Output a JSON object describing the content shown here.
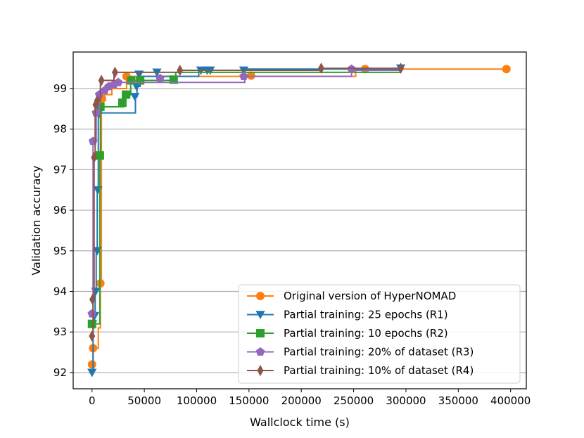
{
  "chart_data": {
    "type": "line",
    "title": "",
    "xlabel": "Wallclock time (s)",
    "ylabel": "Validation accuracy",
    "xlim": [
      -18000,
      415000
    ],
    "ylim": [
      91.6,
      99.9
    ],
    "xticks": [
      0,
      50000,
      100000,
      150000,
      200000,
      250000,
      300000,
      350000,
      400000
    ],
    "xtick_labels": [
      "0",
      "50000",
      "100000",
      "150000",
      "200000",
      "250000",
      "300000",
      "350000",
      "400000"
    ],
    "yticks": [
      92,
      93,
      94,
      95,
      96,
      97,
      98,
      99
    ],
    "ytick_labels": [
      "92",
      "93",
      "94",
      "95",
      "96",
      "97",
      "98",
      "99"
    ],
    "grid": "horizontal",
    "legend_position": "lower-right",
    "series": [
      {
        "name": "Original version of HyperNOMAD",
        "color": "#ff7f0e",
        "marker": "circle",
        "step_points": [
          [
            0,
            92.2
          ],
          [
            1000,
            92.6
          ],
          [
            6000,
            93.1
          ],
          [
            8000,
            94.2
          ],
          [
            9000,
            98.7
          ],
          [
            12000,
            98.85
          ],
          [
            19000,
            99.0
          ],
          [
            33000,
            99.3
          ],
          [
            250000,
            99.3
          ],
          [
            252000,
            99.48
          ],
          [
            396000,
            99.48
          ]
        ],
        "markers": [
          [
            0,
            92.2
          ],
          [
            1000,
            92.6
          ],
          [
            8000,
            94.2
          ],
          [
            9500,
            98.75
          ],
          [
            33000,
            99.3
          ],
          [
            152000,
            99.32
          ],
          [
            261000,
            99.48
          ],
          [
            396000,
            99.48
          ]
        ]
      },
      {
        "name": "Partial training: 25 epochs (R1)",
        "color": "#1f77b4",
        "marker": "triangle-down",
        "step_points": [
          [
            0,
            92.0
          ],
          [
            1000,
            93.1
          ],
          [
            2000,
            93.4
          ],
          [
            3000,
            94.0
          ],
          [
            4000,
            95.0
          ],
          [
            5000,
            96.5
          ],
          [
            6000,
            98.3
          ],
          [
            7000,
            98.4
          ],
          [
            41000,
            98.4
          ],
          [
            41500,
            98.8
          ],
          [
            43000,
            99.05
          ],
          [
            46000,
            99.2
          ],
          [
            48000,
            99.3
          ],
          [
            100000,
            99.3
          ],
          [
            102000,
            99.45
          ],
          [
            146000,
            99.45
          ],
          [
            148000,
            99.48
          ],
          [
            295000,
            99.48
          ]
        ],
        "markers": [
          [
            0,
            92.0
          ],
          [
            500,
            93.2
          ],
          [
            2500,
            93.4
          ],
          [
            3500,
            94.0
          ],
          [
            5000,
            95.0
          ],
          [
            5500,
            96.5
          ],
          [
            6500,
            98.4
          ],
          [
            41000,
            98.8
          ],
          [
            42500,
            99.05
          ],
          [
            45000,
            99.35
          ],
          [
            62000,
            99.4
          ],
          [
            104000,
            99.45
          ],
          [
            110000,
            99.45
          ],
          [
            113000,
            99.45
          ],
          [
            145000,
            99.45
          ],
          [
            295000,
            99.5
          ]
        ]
      },
      {
        "name": "Partial training: 10 epochs (R2)",
        "color": "#2ca02c",
        "marker": "square",
        "step_points": [
          [
            0,
            93.2
          ],
          [
            7000,
            93.2
          ],
          [
            7500,
            97.4
          ],
          [
            8000,
            98.55
          ],
          [
            29000,
            98.55
          ],
          [
            30000,
            98.65
          ],
          [
            32000,
            98.8
          ],
          [
            36000,
            98.85
          ],
          [
            37000,
            99.2
          ],
          [
            77000,
            99.2
          ],
          [
            78000,
            99.22
          ],
          [
            80000,
            99.4
          ],
          [
            295000,
            99.4
          ]
        ],
        "markers": [
          [
            0,
            93.2
          ],
          [
            7500,
            97.35
          ],
          [
            8000,
            98.55
          ],
          [
            29000,
            98.65
          ],
          [
            32500,
            98.85
          ],
          [
            37500,
            99.2
          ],
          [
            46000,
            99.2
          ],
          [
            78000,
            99.22
          ]
        ]
      },
      {
        "name": "Partial training: 20% of dataset (R3)",
        "color": "#9467bd",
        "marker": "pentagon",
        "step_points": [
          [
            0,
            93.45
          ],
          [
            1000,
            97.7
          ],
          [
            4000,
            98.4
          ],
          [
            7000,
            98.85
          ],
          [
            10000,
            98.95
          ],
          [
            15000,
            99.05
          ],
          [
            21000,
            99.1
          ],
          [
            25000,
            99.15
          ],
          [
            145000,
            99.15
          ],
          [
            146000,
            99.3
          ],
          [
            248000,
            99.45
          ],
          [
            295000,
            99.45
          ]
        ],
        "markers": [
          [
            0,
            93.45
          ],
          [
            1000,
            97.7
          ],
          [
            4000,
            98.4
          ],
          [
            7000,
            98.85
          ],
          [
            12000,
            98.95
          ],
          [
            16000,
            99.05
          ],
          [
            21000,
            99.1
          ],
          [
            25000,
            99.15
          ],
          [
            65000,
            99.25
          ],
          [
            145000,
            99.3
          ],
          [
            248000,
            99.48
          ]
        ]
      },
      {
        "name": "Partial training: 10% of dataset (R4)",
        "color": "#8c564b",
        "marker": "thin-diamond",
        "step_points": [
          [
            0,
            92.9
          ],
          [
            1000,
            93.8
          ],
          [
            2000,
            97.3
          ],
          [
            3000,
            98.6
          ],
          [
            4000,
            98.7
          ],
          [
            8000,
            99.2
          ],
          [
            20000,
            99.2
          ],
          [
            21000,
            99.4
          ],
          [
            83000,
            99.4
          ],
          [
            84000,
            99.45
          ],
          [
            218000,
            99.45
          ],
          [
            219000,
            99.5
          ],
          [
            295000,
            99.5
          ]
        ],
        "markers": [
          [
            0,
            92.9
          ],
          [
            500,
            93.8
          ],
          [
            2000,
            97.3
          ],
          [
            3500,
            98.6
          ],
          [
            5000,
            98.7
          ],
          [
            9000,
            99.2
          ],
          [
            22000,
            99.4
          ],
          [
            84000,
            99.45
          ],
          [
            219000,
            99.5
          ],
          [
            295000,
            99.5
          ]
        ]
      }
    ]
  }
}
